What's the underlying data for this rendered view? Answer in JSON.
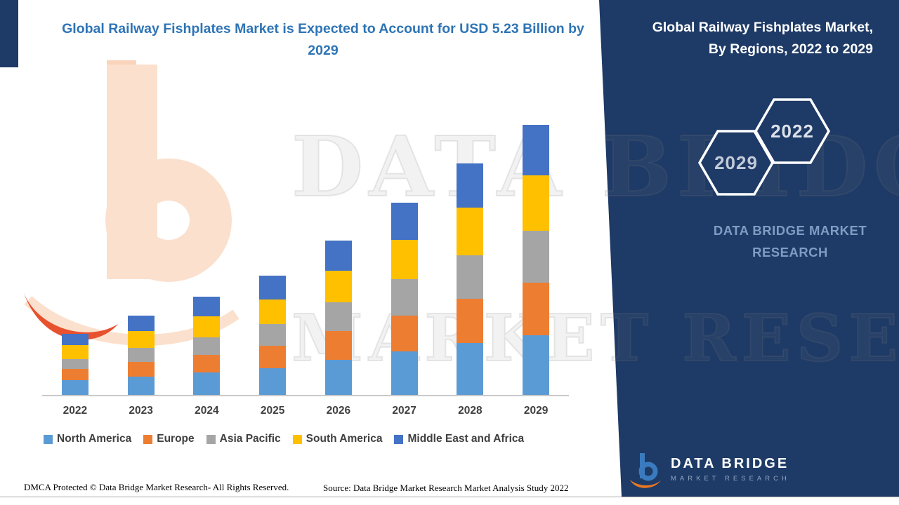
{
  "header": {
    "main_title": "Global Railway Fishplates Market is Expected to Account for USD 5.23 Billion by 2029",
    "panel_title": "Global Railway Fishplates Market, By Regions, 2022 to 2029"
  },
  "panel": {
    "hexagon_back_label": "2029",
    "hexagon_front_label": "2022",
    "brand_caption": "DATA BRIDGE MARKET RESEARCH",
    "logo_title": "DATA BRIDGE",
    "logo_subtitle": "MARKET RESEARCH"
  },
  "watermark": {
    "line1": "DATA BRIDGE",
    "line2": "MARKET RESEARCH"
  },
  "footer": {
    "dmca": "DMCA Protected © Data Bridge Market Research- All Rights Reserved.",
    "source": "Source: Data Bridge Market Research Market Analysis Study 2022"
  },
  "colors": {
    "panel_navy": "#1e3a66",
    "title_blue": "#2e74b5",
    "brand_caption_blue": "#7e9cc4",
    "axis_gray": "#c9c9c9",
    "label_gray": "#404040",
    "logo_peach": "#fbe0cd",
    "logo_orange": "#e8512e"
  },
  "chart_data": {
    "type": "bar",
    "stacked": true,
    "title": "Global Railway Fishplates Market, By Regions, 2022 to 2029",
    "xlabel": "",
    "ylabel": "",
    "units_note": "USD billion, values estimated from bar heights; 2029 total stated as 5.23",
    "ylim": [
      0,
      5.5
    ],
    "grid": false,
    "legend_position": "bottom",
    "categories": [
      "2022",
      "2023",
      "2024",
      "2025",
      "2026",
      "2027",
      "2028",
      "2029"
    ],
    "series": [
      {
        "name": "North America",
        "color": "#5b9bd5",
        "values": [
          0.28,
          0.36,
          0.43,
          0.52,
          0.68,
          0.84,
          1.0,
          1.15
        ]
      },
      {
        "name": "Europe",
        "color": "#ed7d31",
        "values": [
          0.22,
          0.28,
          0.35,
          0.43,
          0.56,
          0.7,
          0.86,
          1.02
        ]
      },
      {
        "name": "Asia Pacific",
        "color": "#a5a5a5",
        "values": [
          0.2,
          0.27,
          0.34,
          0.42,
          0.55,
          0.7,
          0.85,
          1.01
        ]
      },
      {
        "name": "South America",
        "color": "#ffc000",
        "values": [
          0.26,
          0.32,
          0.4,
          0.48,
          0.62,
          0.77,
          0.92,
          1.07
        ]
      },
      {
        "name": "Middle East and Africa",
        "color": "#4472c4",
        "values": [
          0.22,
          0.3,
          0.38,
          0.46,
          0.58,
          0.72,
          0.85,
          0.98
        ]
      }
    ],
    "totals": [
      1.18,
      1.53,
      1.9,
      2.31,
      2.99,
      3.73,
      4.48,
      5.23
    ]
  }
}
